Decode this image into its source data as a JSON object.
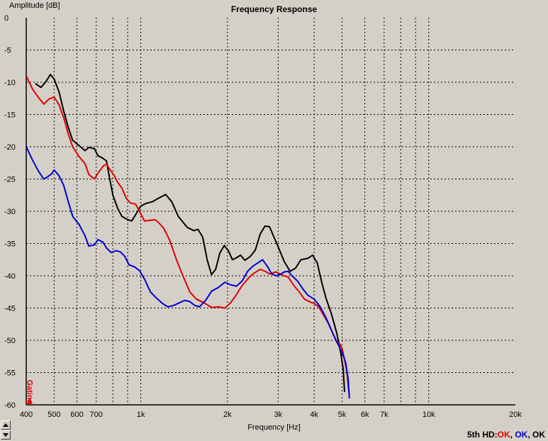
{
  "window": {
    "title": "Frequency Response"
  },
  "status": {
    "prefix": "5th HD:",
    "items": [
      {
        "text": "OK",
        "color": "#e00000"
      },
      {
        "sep": ", "
      },
      {
        "text": "OK",
        "color": "#0000d0"
      },
      {
        "sep": ", "
      },
      {
        "text": "OK",
        "color": "#000000"
      }
    ]
  },
  "gating_label": "Gating",
  "chart_data": {
    "type": "line",
    "title": "Frequency Response",
    "xlabel": "Frequency [Hz]",
    "ylabel": "Amplitude [dB]",
    "x_scale": "log",
    "xlim": [
      400,
      20000
    ],
    "ylim": [
      -60,
      0
    ],
    "grid": true,
    "y_ticks": [
      0,
      -5,
      -10,
      -15,
      -20,
      -25,
      -30,
      -35,
      -40,
      -45,
      -50,
      -55,
      -60
    ],
    "x_ticks": [
      {
        "value": 400,
        "label": "400"
      },
      {
        "value": 500,
        "label": "500"
      },
      {
        "value": 600,
        "label": "600"
      },
      {
        "value": 700,
        "label": "700"
      },
      {
        "value": 800,
        "label": ""
      },
      {
        "value": 900,
        "label": ""
      },
      {
        "value": 1000,
        "label": "1k"
      },
      {
        "value": 2000,
        "label": "2k"
      },
      {
        "value": 3000,
        "label": "3k"
      },
      {
        "value": 4000,
        "label": "4k"
      },
      {
        "value": 5000,
        "label": "5k"
      },
      {
        "value": 6000,
        "label": "6k"
      },
      {
        "value": 7000,
        "label": "7k"
      },
      {
        "value": 8000,
        "label": ""
      },
      {
        "value": 9000,
        "label": ""
      },
      {
        "value": 10000,
        "label": "10k"
      },
      {
        "value": 20000,
        "label": "20k"
      }
    ],
    "series": [
      {
        "color": "#000000",
        "points": [
          [
            430,
            -10.2
          ],
          [
            450,
            -10.8
          ],
          [
            470,
            -9.8
          ],
          [
            485,
            -8.8
          ],
          [
            500,
            -9.5
          ],
          [
            520,
            -11.5
          ],
          [
            540,
            -14.5
          ],
          [
            560,
            -17
          ],
          [
            580,
            -19
          ],
          [
            610,
            -19.8
          ],
          [
            640,
            -20.6
          ],
          [
            660,
            -20.1
          ],
          [
            690,
            -20.3
          ],
          [
            710,
            -21.4
          ],
          [
            740,
            -21.8
          ],
          [
            760,
            -22.2
          ],
          [
            780,
            -25
          ],
          [
            800,
            -27.5
          ],
          [
            830,
            -29.5
          ],
          [
            860,
            -30.8
          ],
          [
            900,
            -31.3
          ],
          [
            930,
            -31.5
          ],
          [
            960,
            -30.5
          ],
          [
            1000,
            -29.2
          ],
          [
            1040,
            -28.8
          ],
          [
            1100,
            -28.5
          ],
          [
            1150,
            -28
          ],
          [
            1220,
            -27.4
          ],
          [
            1280,
            -28.5
          ],
          [
            1350,
            -30.8
          ],
          [
            1450,
            -32.5
          ],
          [
            1530,
            -33
          ],
          [
            1580,
            -32.8
          ],
          [
            1640,
            -34
          ],
          [
            1700,
            -37.5
          ],
          [
            1760,
            -39.8
          ],
          [
            1820,
            -39
          ],
          [
            1880,
            -36.5
          ],
          [
            1950,
            -35.3
          ],
          [
            2020,
            -36.2
          ],
          [
            2080,
            -37.5
          ],
          [
            2150,
            -37.2
          ],
          [
            2220,
            -36.8
          ],
          [
            2300,
            -37.6
          ],
          [
            2400,
            -37
          ],
          [
            2500,
            -36
          ],
          [
            2600,
            -33.5
          ],
          [
            2700,
            -32.3
          ],
          [
            2800,
            -32.4
          ],
          [
            2900,
            -34
          ],
          [
            3000,
            -35.5
          ],
          [
            3150,
            -37.8
          ],
          [
            3300,
            -39.3
          ],
          [
            3450,
            -38.8
          ],
          [
            3600,
            -37.5
          ],
          [
            3800,
            -37.3
          ],
          [
            3950,
            -36.8
          ],
          [
            4100,
            -38
          ],
          [
            4250,
            -41
          ],
          [
            4400,
            -43.5
          ],
          [
            4600,
            -46
          ],
          [
            4800,
            -49
          ],
          [
            4950,
            -52
          ],
          [
            5050,
            -54.5
          ],
          [
            5100,
            -58
          ]
        ]
      },
      {
        "color": "#e00000",
        "points": [
          [
            400,
            -9
          ],
          [
            420,
            -11
          ],
          [
            440,
            -12.3
          ],
          [
            460,
            -13.4
          ],
          [
            480,
            -12.6
          ],
          [
            500,
            -12.3
          ],
          [
            520,
            -13.5
          ],
          [
            540,
            -15.5
          ],
          [
            560,
            -18
          ],
          [
            580,
            -20
          ],
          [
            610,
            -21.5
          ],
          [
            640,
            -22.6
          ],
          [
            660,
            -24.3
          ],
          [
            690,
            -25
          ],
          [
            710,
            -24.1
          ],
          [
            740,
            -23
          ],
          [
            760,
            -22.7
          ],
          [
            780,
            -23.5
          ],
          [
            810,
            -24.5
          ],
          [
            830,
            -25.5
          ],
          [
            860,
            -26.4
          ],
          [
            890,
            -28
          ],
          [
            920,
            -28.7
          ],
          [
            960,
            -28.9
          ],
          [
            990,
            -30
          ],
          [
            1030,
            -31.5
          ],
          [
            1080,
            -31.4
          ],
          [
            1120,
            -31.3
          ],
          [
            1150,
            -31.7
          ],
          [
            1200,
            -32.6
          ],
          [
            1260,
            -34.5
          ],
          [
            1330,
            -37.5
          ],
          [
            1400,
            -40
          ],
          [
            1480,
            -42.5
          ],
          [
            1560,
            -43.6
          ],
          [
            1660,
            -44.2
          ],
          [
            1760,
            -44.9
          ],
          [
            1860,
            -44.8
          ],
          [
            1960,
            -45
          ],
          [
            2050,
            -44.2
          ],
          [
            2150,
            -42.9
          ],
          [
            2250,
            -41.5
          ],
          [
            2350,
            -40.5
          ],
          [
            2450,
            -39.7
          ],
          [
            2600,
            -39
          ],
          [
            2700,
            -39.3
          ],
          [
            2800,
            -39.7
          ],
          [
            2950,
            -39.4
          ],
          [
            3100,
            -39.9
          ],
          [
            3250,
            -40.2
          ],
          [
            3400,
            -41.5
          ],
          [
            3550,
            -42.5
          ],
          [
            3700,
            -43.6
          ],
          [
            3850,
            -44
          ],
          [
            4000,
            -44.3
          ],
          [
            4150,
            -44.8
          ],
          [
            4300,
            -46
          ],
          [
            4500,
            -47.5
          ],
          [
            4650,
            -49
          ],
          [
            4800,
            -50.3
          ],
          [
            4900,
            -50.5
          ],
          [
            5000,
            -51.2
          ],
          [
            5100,
            -53
          ],
          [
            5200,
            -55
          ],
          [
            5250,
            -57
          ],
          [
            5300,
            -58.5
          ]
        ]
      },
      {
        "color": "#0000d0",
        "points": [
          [
            400,
            -20
          ],
          [
            420,
            -22
          ],
          [
            440,
            -23.7
          ],
          [
            460,
            -25
          ],
          [
            470,
            -24.8
          ],
          [
            490,
            -24.2
          ],
          [
            500,
            -23.6
          ],
          [
            520,
            -24.5
          ],
          [
            540,
            -26
          ],
          [
            560,
            -28.5
          ],
          [
            580,
            -30.8
          ],
          [
            610,
            -32
          ],
          [
            640,
            -33.8
          ],
          [
            660,
            -35.4
          ],
          [
            690,
            -35.2
          ],
          [
            710,
            -34.4
          ],
          [
            740,
            -34.8
          ],
          [
            760,
            -35.7
          ],
          [
            790,
            -36.4
          ],
          [
            820,
            -36.1
          ],
          [
            850,
            -36.3
          ],
          [
            880,
            -37
          ],
          [
            910,
            -38.3
          ],
          [
            950,
            -38.6
          ],
          [
            990,
            -39.2
          ],
          [
            1030,
            -40.5
          ],
          [
            1080,
            -42.5
          ],
          [
            1130,
            -43.4
          ],
          [
            1190,
            -44.3
          ],
          [
            1240,
            -44.8
          ],
          [
            1300,
            -44.6
          ],
          [
            1360,
            -44.2
          ],
          [
            1420,
            -43.8
          ],
          [
            1480,
            -44
          ],
          [
            1540,
            -44.6
          ],
          [
            1600,
            -44.8
          ],
          [
            1680,
            -43.8
          ],
          [
            1760,
            -42.4
          ],
          [
            1860,
            -41.8
          ],
          [
            1960,
            -41
          ],
          [
            2050,
            -41.4
          ],
          [
            2150,
            -41.6
          ],
          [
            2250,
            -40.8
          ],
          [
            2350,
            -39.3
          ],
          [
            2450,
            -38.5
          ],
          [
            2550,
            -38
          ],
          [
            2650,
            -37.5
          ],
          [
            2750,
            -38.5
          ],
          [
            2850,
            -39.7
          ],
          [
            2950,
            -40
          ],
          [
            3050,
            -39.8
          ],
          [
            3150,
            -39.4
          ],
          [
            3250,
            -39.3
          ],
          [
            3350,
            -40
          ],
          [
            3500,
            -40.8
          ],
          [
            3650,
            -42
          ],
          [
            3800,
            -43
          ],
          [
            4000,
            -43.6
          ],
          [
            4200,
            -44.8
          ],
          [
            4400,
            -46.5
          ],
          [
            4600,
            -48.5
          ],
          [
            4800,
            -50.3
          ],
          [
            5000,
            -51.8
          ],
          [
            5150,
            -53.5
          ],
          [
            5250,
            -56
          ],
          [
            5300,
            -59
          ]
        ]
      }
    ]
  }
}
